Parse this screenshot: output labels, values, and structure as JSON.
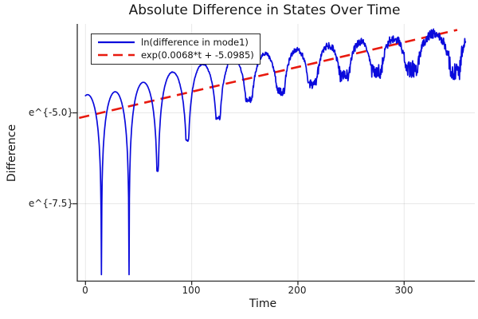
{
  "chart_data": {
    "type": "line",
    "title": "Absolute Difference in States Over Time",
    "xlabel": "Time",
    "ylabel": "Difference",
    "x_ticks": [
      {
        "value": 0,
        "label": "0"
      },
      {
        "value": 100,
        "label": "100"
      },
      {
        "value": 200,
        "label": "200"
      },
      {
        "value": 300,
        "label": "300"
      }
    ],
    "y_ticks": [
      {
        "value_ln": -5.0,
        "label": "e^{-5.0}"
      },
      {
        "value_ln": -7.5,
        "label": "e^{-7.5}"
      }
    ],
    "x_range": [
      -8,
      367
    ],
    "y_range_ln": [
      -9.6,
      -2.53
    ],
    "y_scale": "ln",
    "grid": true,
    "legend_position": "top-left",
    "series": [
      {
        "name": "ln(difference in mode1)",
        "color": "#0a0adc",
        "style": "solid",
        "t_range": [
          0,
          358
        ],
        "model": {
          "description": "log-scale oscillating difference: arcs between zero-crossing cusp dips; peaks grow roughly linearly in ln space; high-frequency noise grows with t",
          "arc_bounds_t": [
            -11,
            15,
            41,
            68,
            96,
            125,
            154,
            184,
            214,
            244,
            274,
            307,
            349,
            380
          ],
          "dip_values_ln": [
            -9.45,
            -9.45,
            -9.45,
            -6.6,
            -5.75,
            -5.15,
            -4.65,
            -4.4,
            -4.2,
            -4.0,
            -3.85,
            -3.8,
            -3.88,
            -3.9
          ],
          "peak_values_ln": [
            -4.5,
            -4.42,
            -4.16,
            -3.88,
            -3.66,
            -3.5,
            -3.38,
            -3.26,
            -3.15,
            -3.05,
            -2.95,
            -2.82,
            -2.72
          ],
          "noise_amp_ln": [
            0,
            0,
            0,
            0.01,
            0.02,
            0.03,
            0.05,
            0.07,
            0.09,
            0.1,
            0.12,
            0.13,
            0.13
          ],
          "start_point": {
            "t": 0,
            "v_ln": -4.55
          },
          "value_floor_ln": -9.45,
          "value_ceiling_ln": -2.56
        }
      },
      {
        "name": "exp(0.0068*t + -5.0985)",
        "color": "#e8190e",
        "style": "dashed",
        "fit": {
          "slope": 0.0068,
          "intercept": -5.0985,
          "t_start": -6,
          "t_end": 350
        }
      }
    ]
  },
  "axes_style": {
    "spine_color": "#2b2b2b",
    "grid_color": "rgba(0,0,0,0.09)",
    "tick_color": "#2b2b2b"
  }
}
